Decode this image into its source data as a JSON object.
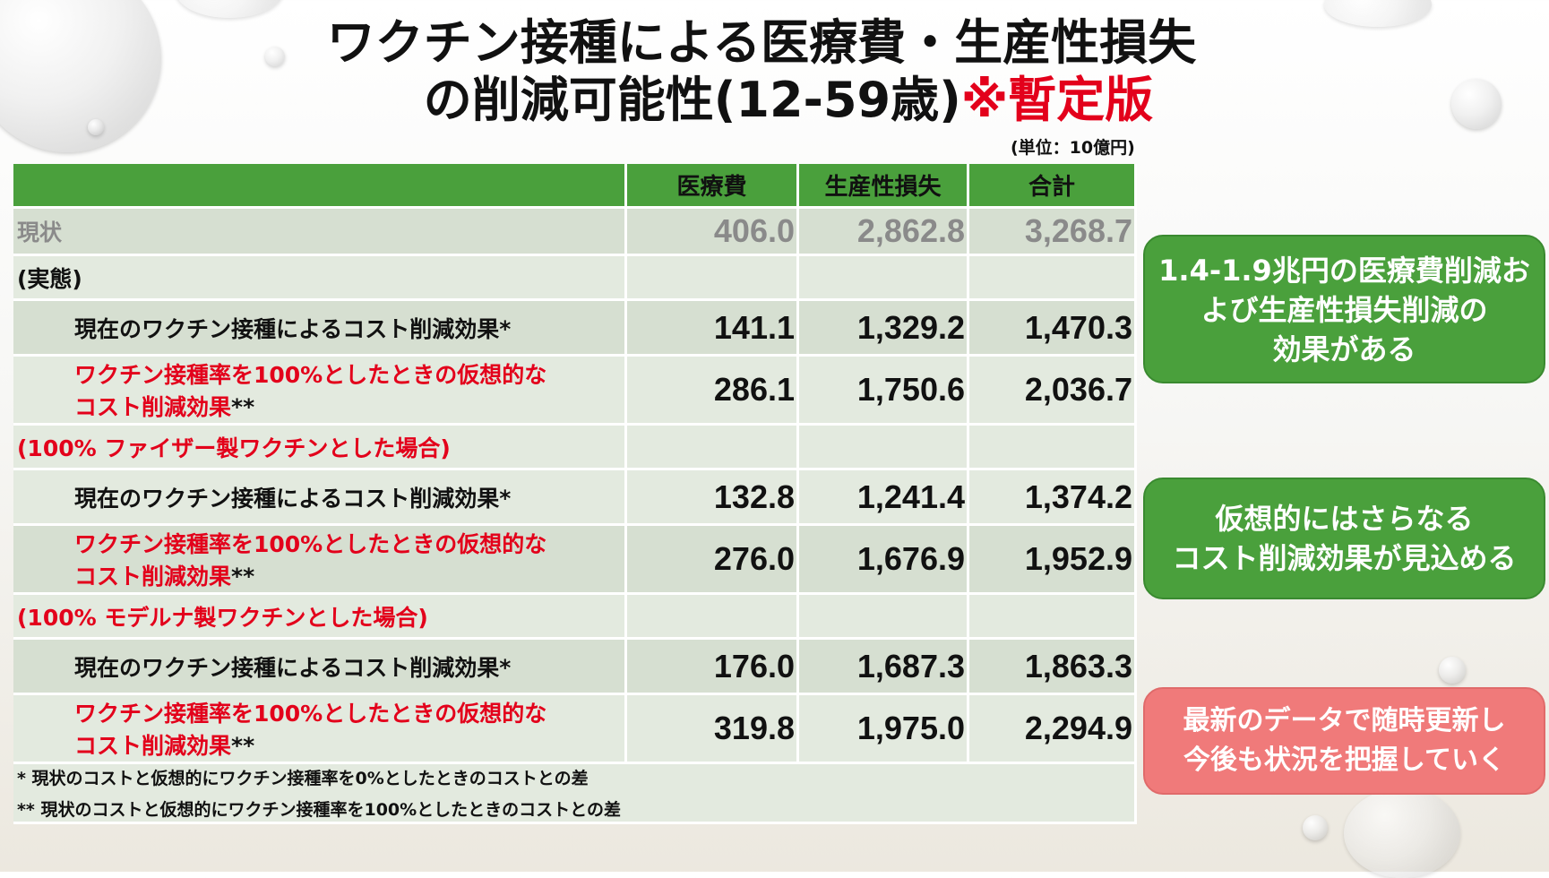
{
  "title": {
    "line1": "ワクチン接種による医療費・生産性損失",
    "line2_main": "の削減可能性(12-59歳)",
    "line2_red": "※暫定版"
  },
  "unit": "(単位：10億円)",
  "table": {
    "headers": [
      "医療費",
      "生産性損失",
      "合計"
    ],
    "status": {
      "label": "現状",
      "values": [
        "406.0",
        "2,862.8",
        "3,268.7"
      ]
    },
    "sections": [
      {
        "heading": "(実態)",
        "current_label": "現在のワクチン接種によるコスト削減効果*",
        "current_values": [
          "141.1",
          "1,329.2",
          "1,470.3"
        ],
        "hypo_line1": "ワクチン接種率を100%としたときの仮想的な",
        "hypo_line2": "コスト削減効果",
        "hypo_mark": "**",
        "hypo_values": [
          "286.1",
          "1,750.6",
          "2,036.7"
        ]
      },
      {
        "heading": "(100% ファイザー製ワクチンとした場合)",
        "current_label": "現在のワクチン接種によるコスト削減効果*",
        "current_values": [
          "132.8",
          "1,241.4",
          "1,374.2"
        ],
        "hypo_line1": "ワクチン接種率を100%としたときの仮想的な",
        "hypo_line2": "コスト削減効果",
        "hypo_mark": "**",
        "hypo_values": [
          "276.0",
          "1,676.9",
          "1,952.9"
        ]
      },
      {
        "heading": "(100% モデルナ製ワクチンとした場合)",
        "current_label": "現在のワクチン接種によるコスト削減効果*",
        "current_values": [
          "176.0",
          "1,687.3",
          "1,863.3"
        ],
        "hypo_line1": "ワクチン接種率を100%としたときの仮想的な",
        "hypo_line2": "コスト削減効果",
        "hypo_mark": "**",
        "hypo_values": [
          "319.8",
          "1,975.0",
          "2,294.9"
        ]
      }
    ],
    "footnotes": [
      "* 現状のコストと仮想的にワクチン接種率を0%としたときのコストとの差",
      "** 現状のコストと仮想的にワクチン接種率を100%としたときのコストとの差"
    ]
  },
  "callouts": {
    "box1": [
      "1.4-1.9兆円の医療費削減お",
      "よび生産性損失削減の",
      "効果がある"
    ],
    "box2": [
      "仮想的にはさらなる",
      "コスト削減効果が見込める"
    ],
    "box3": [
      "最新のデータで随時更新し",
      "今後も状況を把握していく"
    ]
  },
  "colors": {
    "header_green": "#4aa03c",
    "accent_red": "#e3001b",
    "callout_pink": "#f07a7a"
  }
}
